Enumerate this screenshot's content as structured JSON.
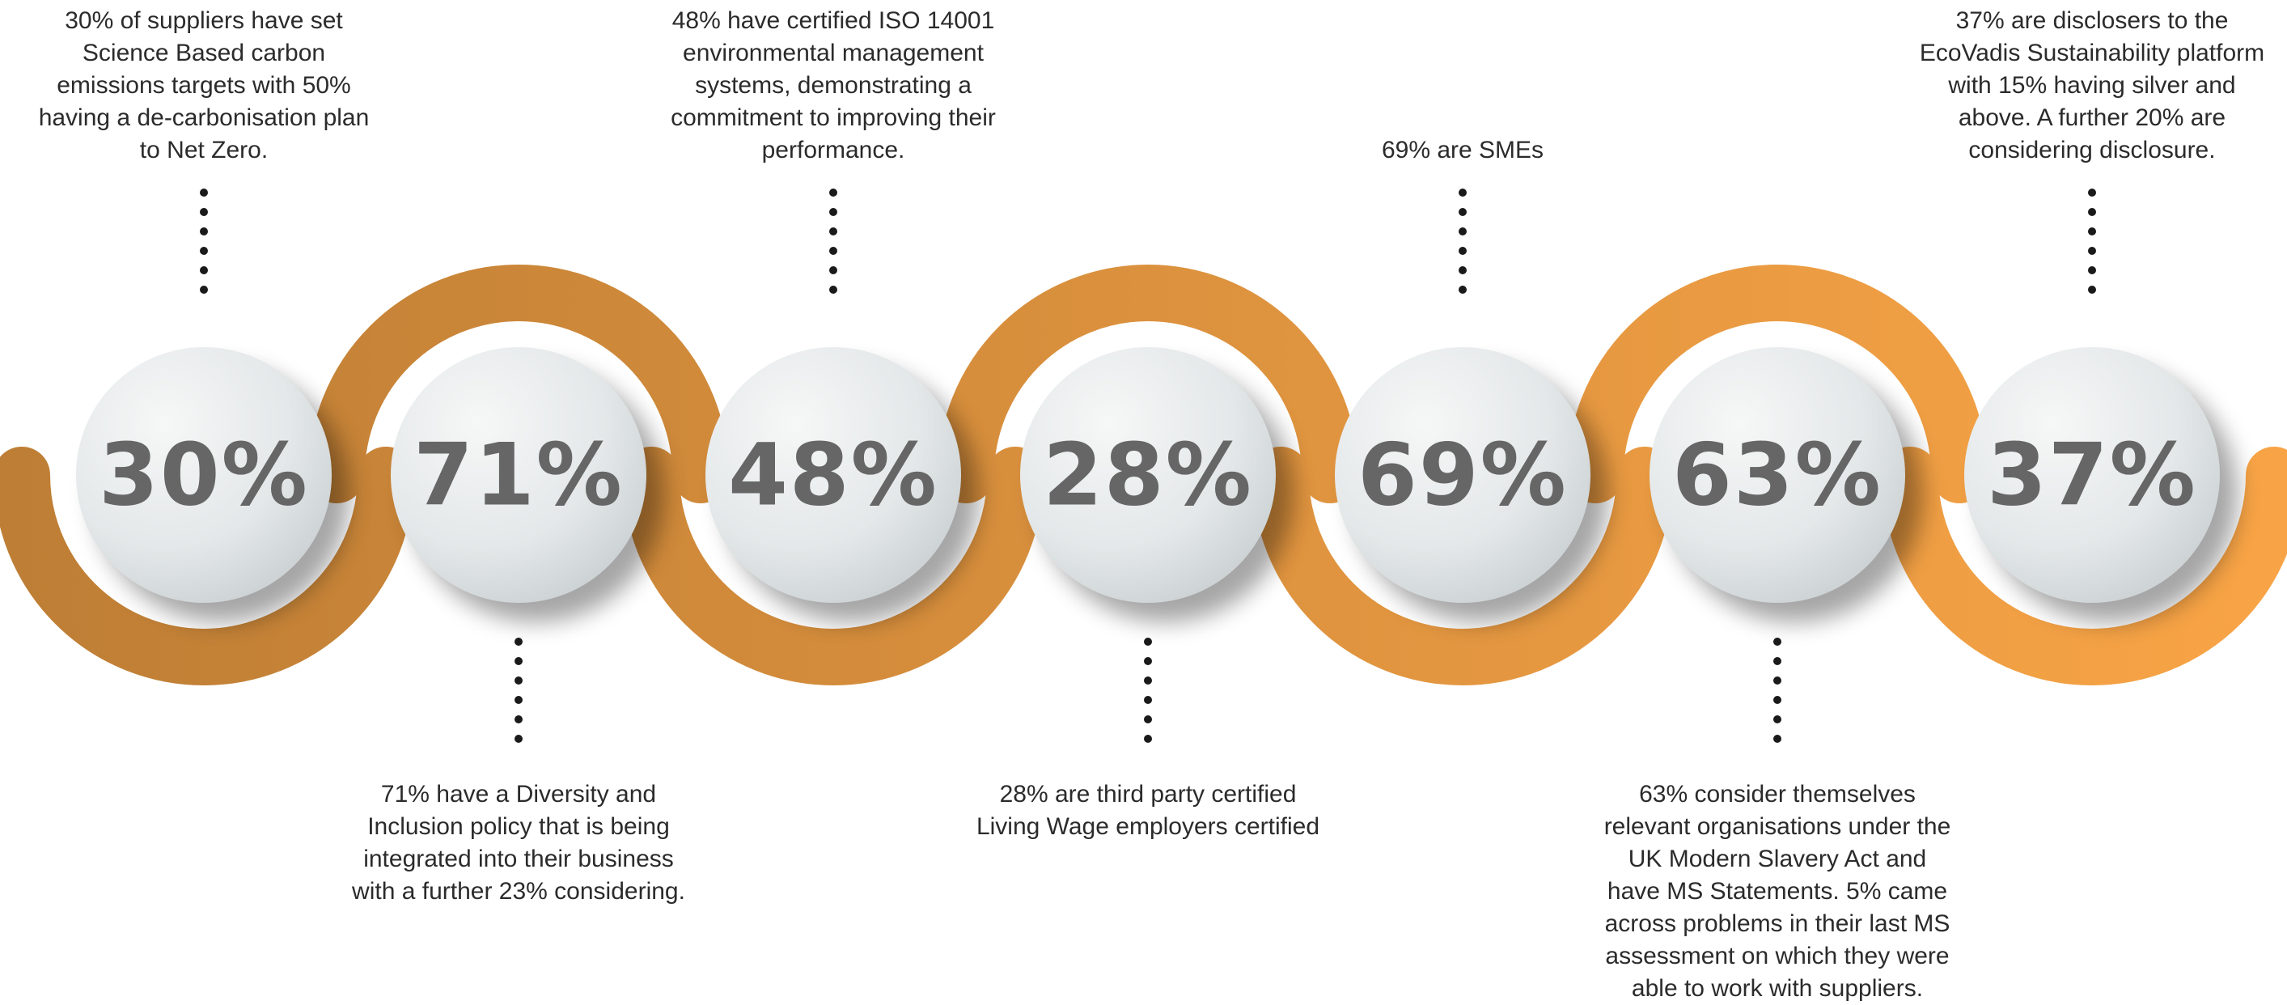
{
  "colors": {
    "gradient_start": "#BE7E35",
    "gradient_end": "#F8A446",
    "circle_light": "#F6F7F7",
    "circle_dark": "#C9CFD1",
    "number": "#666666",
    "dot": "#1a1a1a",
    "text": "#2b2b2b"
  },
  "stats": [
    {
      "value": "30%",
      "position": "top",
      "caption": "30% of suppliers have set Science Based carbon emissions targets with 50% having a de-carbonisation plan to Net Zero."
    },
    {
      "value": "71%",
      "position": "bottom",
      "caption": "71% have a Diversity and Inclusion policy that is being integrated into their business with a further 23% considering."
    },
    {
      "value": "48%",
      "position": "top",
      "caption": "48% have certified ISO 14001 environmental management systems, demonstrating a commitment to improving their performance."
    },
    {
      "value": "28%",
      "position": "bottom",
      "caption": "28% are third party certified Living Wage employers certified"
    },
    {
      "value": "69%",
      "position": "top",
      "caption": "69% are SMEs"
    },
    {
      "value": "63%",
      "position": "bottom",
      "caption": "63% consider themselves relevant organisations under the UK Modern Slavery Act and have MS Statements.  5% came across problems in their last MS assessment on which they were able to work with suppliers."
    },
    {
      "value": "37%",
      "position": "top",
      "caption": "37% are disclosers to the EcoVadis Sustainability platform with 15% having silver and above. A further 20% are considering disclosure."
    }
  ]
}
